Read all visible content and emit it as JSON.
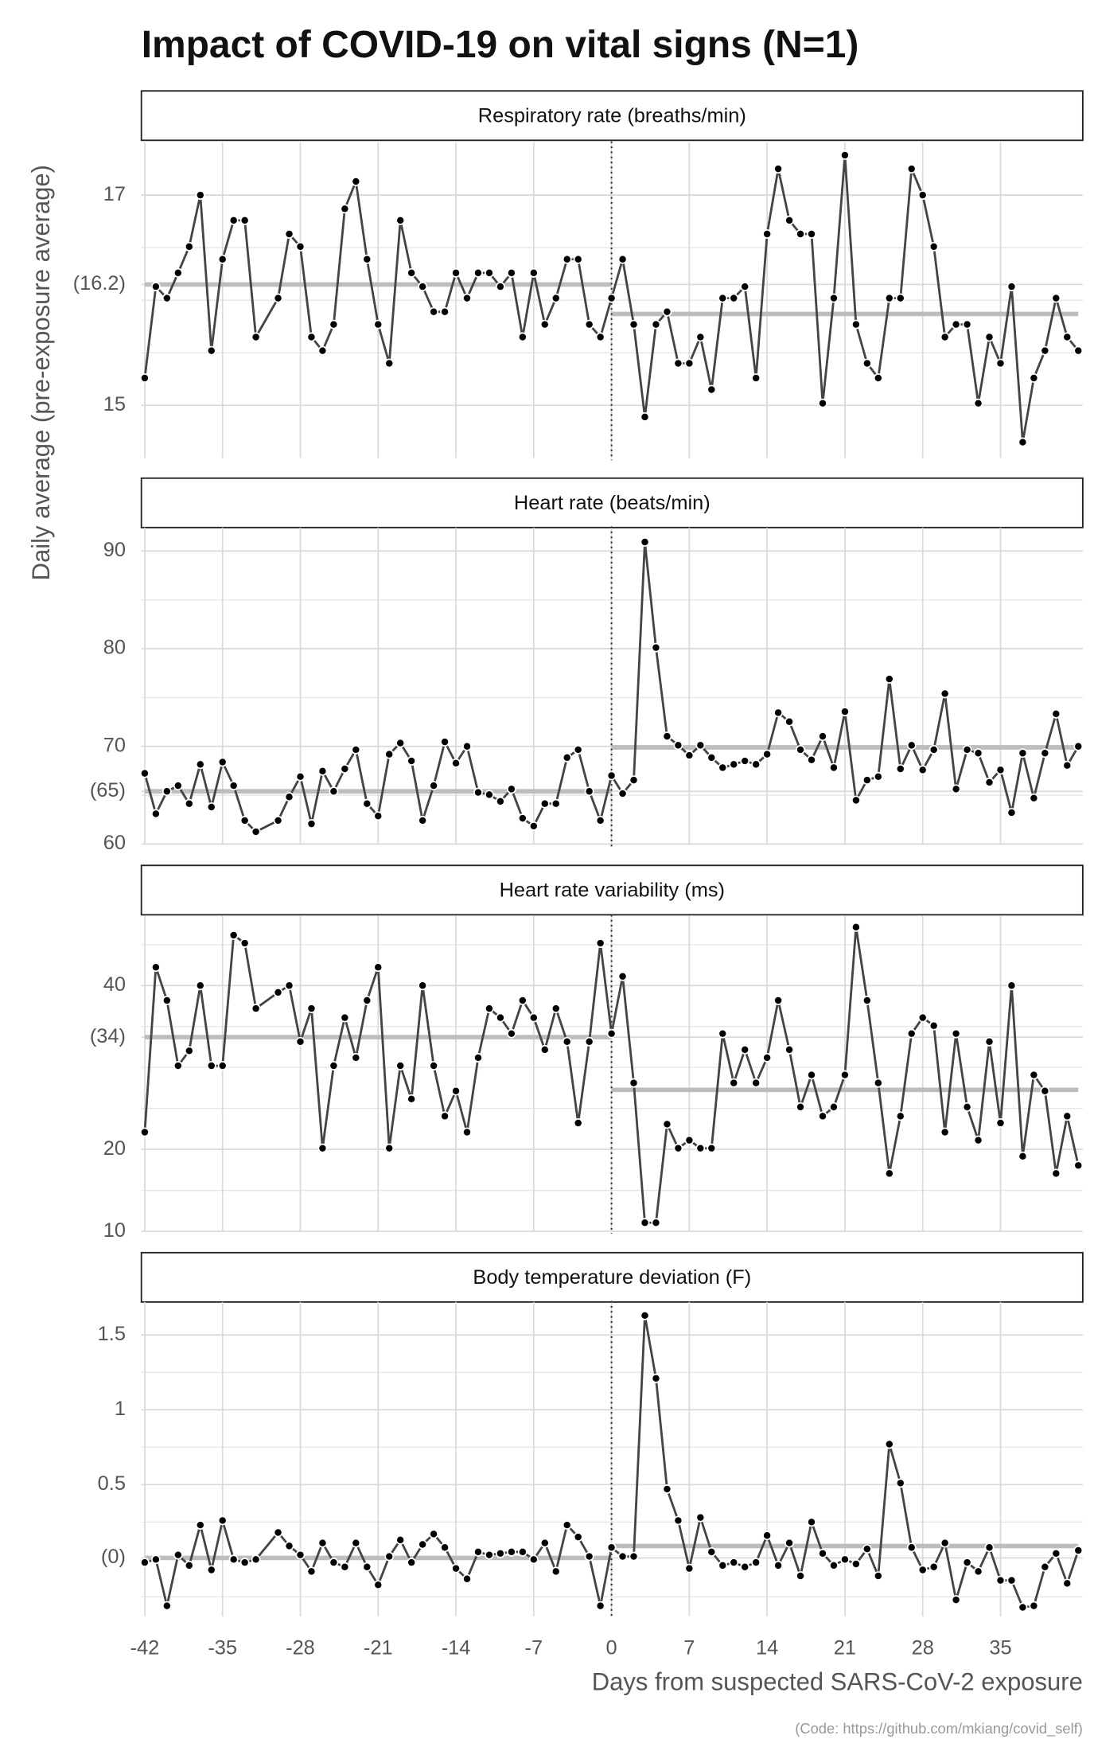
{
  "title": "Impact of COVID-19 on vital signs (N=1)",
  "y_label": "Daily average (pre-exposure average)",
  "x_label": "Days from suspected SARS-CoV-2 exposure",
  "caption": "(Code: https://github.com/mkiang/covid_self)",
  "chart_data": [
    {
      "type": "line",
      "title": "Respiratory rate (breaths/min)",
      "color": "#444444",
      "x": [
        -42,
        -41,
        -40,
        -39,
        -38,
        -37,
        -36,
        -35,
        -34,
        -33,
        -32,
        -30,
        -29,
        -28,
        -27,
        -26,
        -25,
        -24,
        -23,
        -22,
        -21,
        -20,
        -19,
        -18,
        -17,
        -16,
        -15,
        -14,
        -13,
        -12,
        -11,
        -10,
        -9,
        -8,
        -7,
        -6,
        -5,
        -4,
        -3,
        -2,
        -1,
        0,
        1,
        2,
        3,
        4,
        5,
        6,
        7,
        8,
        9,
        10,
        11,
        12,
        13,
        14,
        15,
        16,
        17,
        18,
        19,
        20,
        21,
        22,
        23,
        24,
        25,
        26,
        27,
        28,
        29,
        30,
        31,
        32,
        33,
        34,
        35,
        36,
        37,
        38,
        39,
        40,
        41,
        42
      ],
      "values": [
        15.26,
        16.13,
        16.02,
        16.26,
        16.51,
        17.0,
        15.52,
        16.39,
        16.76,
        16.76,
        15.65,
        16.02,
        16.63,
        16.51,
        15.65,
        15.52,
        15.77,
        16.87,
        17.13,
        16.39,
        15.77,
        15.4,
        16.76,
        16.26,
        16.13,
        15.89,
        15.89,
        16.26,
        16.02,
        16.26,
        16.26,
        16.13,
        16.26,
        15.65,
        16.26,
        15.77,
        16.02,
        16.39,
        16.39,
        15.77,
        15.65,
        16.02,
        16.39,
        15.77,
        14.89,
        15.77,
        15.89,
        15.4,
        15.4,
        15.65,
        15.15,
        16.02,
        16.02,
        16.13,
        15.26,
        16.63,
        17.25,
        16.76,
        16.63,
        16.63,
        15.02,
        16.02,
        17.38,
        15.77,
        15.4,
        15.26,
        16.02,
        16.02,
        17.25,
        17.0,
        16.51,
        15.65,
        15.77,
        15.77,
        15.02,
        15.65,
        15.4,
        16.13,
        14.65,
        15.26,
        15.52,
        16.02,
        15.65,
        15.52
      ],
      "pre_mean": 16.15,
      "post_mean": 15.87,
      "event_x": 0,
      "xlim": [
        -42,
        42
      ],
      "xticks": [
        -42,
        -35,
        -28,
        -21,
        -14,
        -7,
        0,
        7,
        14,
        21,
        28,
        35
      ],
      "ylim": [
        14.5,
        17.5
      ],
      "yticks": [
        15,
        {
          "value": 16.15,
          "label": "(16.2)"
        },
        17
      ],
      "minor_yticks": [
        15.5,
        16,
        16.5
      ]
    },
    {
      "type": "line",
      "title": "Heart rate (beats/min)",
      "color": "#444444",
      "x": [
        -42,
        -41,
        -40,
        -39,
        -38,
        -37,
        -36,
        -35,
        -34,
        -33,
        -32,
        -30,
        -29,
        -28,
        -27,
        -26,
        -25,
        -24,
        -23,
        -22,
        -21,
        -20,
        -19,
        -18,
        -17,
        -16,
        -15,
        -14,
        -13,
        -12,
        -11,
        -10,
        -9,
        -8,
        -7,
        -6,
        -5,
        -4,
        -3,
        -2,
        -1,
        0,
        1,
        2,
        3,
        4,
        5,
        6,
        7,
        8,
        9,
        10,
        11,
        12,
        13,
        14,
        15,
        16,
        17,
        18,
        19,
        20,
        21,
        22,
        23,
        24,
        25,
        26,
        27,
        28,
        29,
        30,
        31,
        32,
        33,
        34,
        35,
        36,
        37,
        38,
        39,
        40,
        41,
        42
      ],
      "values": [
        67.24,
        63.1,
        65.4,
        65.98,
        64.14,
        68.16,
        63.79,
        68.39,
        65.98,
        62.41,
        61.26,
        62.41,
        64.83,
        66.9,
        62.07,
        67.47,
        65.4,
        67.7,
        69.66,
        64.14,
        62.87,
        69.2,
        70.34,
        68.51,
        62.41,
        65.98,
        70.46,
        68.28,
        70.0,
        65.29,
        65.06,
        64.37,
        65.63,
        62.64,
        61.84,
        64.14,
        64.14,
        68.85,
        69.66,
        65.4,
        62.41,
        67.01,
        65.17,
        66.55,
        90.92,
        80.11,
        71.03,
        70.11,
        69.08,
        70.11,
        68.85,
        67.82,
        68.16,
        68.51,
        68.16,
        69.2,
        73.45,
        72.53,
        69.66,
        68.62,
        71.03,
        67.82,
        73.56,
        64.48,
        66.55,
        66.9,
        76.9,
        67.7,
        70.11,
        67.59,
        69.66,
        75.4,
        65.63,
        69.66,
        69.31,
        66.32,
        67.59,
        63.22,
        69.31,
        64.71,
        69.31,
        73.33,
        68.05,
        70.0
      ],
      "pre_mean": 65.4,
      "post_mean": 69.9,
      "event_x": 0,
      "xlim": [
        -42,
        42
      ],
      "xticks": [
        -42,
        -35,
        -28,
        -21,
        -14,
        -7,
        0,
        7,
        14,
        21,
        28,
        35
      ],
      "ylim": [
        60,
        92.4
      ],
      "yticks": [
        60,
        {
          "value": 65.4,
          "label": "(65)"
        },
        70,
        80,
        90
      ],
      "minor_yticks": [
        65,
        75,
        85
      ]
    },
    {
      "type": "line",
      "title": "Heart rate variability (ms)",
      "color": "#444444",
      "x": [
        -42,
        -41,
        -40,
        -39,
        -38,
        -37,
        -36,
        -35,
        -34,
        -33,
        -32,
        -30,
        -29,
        -28,
        -27,
        -26,
        -25,
        -24,
        -23,
        -22,
        -21,
        -20,
        -19,
        -18,
        -17,
        -16,
        -15,
        -14,
        -13,
        -12,
        -11,
        -10,
        -9,
        -8,
        -7,
        -6,
        -5,
        -4,
        -3,
        -2,
        -1,
        0,
        1,
        2,
        3,
        4,
        5,
        6,
        7,
        8,
        9,
        10,
        11,
        12,
        13,
        14,
        15,
        16,
        17,
        18,
        19,
        20,
        21,
        22,
        23,
        24,
        25,
        26,
        27,
        28,
        29,
        30,
        31,
        32,
        33,
        34,
        35,
        36,
        37,
        38,
        39,
        40,
        41,
        42
      ],
      "values": [
        22.1,
        42.24,
        38.18,
        30.21,
        32.03,
        40,
        30.21,
        30.21,
        46.15,
        45.17,
        37.2,
        39.16,
        40,
        33.15,
        37.2,
        20.14,
        30.21,
        36.08,
        31.19,
        38.18,
        42.24,
        20.14,
        30.21,
        26.15,
        40,
        30.21,
        24.06,
        27.13,
        22.1,
        31.19,
        37.2,
        36.08,
        34.13,
        38.18,
        36.08,
        32.17,
        37.2,
        33.15,
        23.22,
        33.15,
        45.17,
        34.13,
        41.12,
        28.11,
        11.05,
        11.05,
        23.08,
        20.14,
        21.12,
        20.14,
        20.14,
        34.13,
        28.11,
        32.17,
        28.11,
        31.19,
        38.18,
        32.17,
        25.17,
        29.09,
        24.06,
        25.17,
        29.09,
        47.13,
        38.18,
        28.11,
        17.06,
        24.06,
        34.13,
        36.08,
        35.1,
        22.1,
        34.13,
        25.17,
        21.12,
        33.15,
        23.22,
        40,
        19.16,
        29.09,
        27.13,
        17.06,
        24.06,
        18.04
      ],
      "pre_mean": 33.7,
      "post_mean": 27.27,
      "event_x": 0,
      "xlim": [
        -42,
        42
      ],
      "xticks": [
        -42,
        -35,
        -28,
        -21,
        -14,
        -7,
        0,
        7,
        14,
        21,
        28,
        35
      ],
      "ylim": [
        10,
        48.5
      ],
      "yticks": [
        10,
        20,
        {
          "value": 33.7,
          "label": "(34)"
        },
        40
      ],
      "minor_yticks": [
        15,
        25,
        30,
        35,
        45
      ]
    },
    {
      "type": "line",
      "title": "Body temperature deviation (F)",
      "color": "#444444",
      "x": [
        -42,
        -41,
        -40,
        -39,
        -38,
        -37,
        -36,
        -35,
        -34,
        -33,
        -32,
        -30,
        -29,
        -28,
        -27,
        -26,
        -25,
        -24,
        -23,
        -22,
        -21,
        -20,
        -19,
        -18,
        -17,
        -16,
        -15,
        -14,
        -13,
        -12,
        -11,
        -10,
        -9,
        -8,
        -7,
        -6,
        -5,
        -4,
        -3,
        -2,
        -1,
        0,
        1,
        2,
        3,
        4,
        5,
        6,
        7,
        8,
        9,
        10,
        11,
        12,
        13,
        14,
        15,
        16,
        17,
        18,
        19,
        20,
        21,
        22,
        23,
        24,
        25,
        26,
        27,
        28,
        29,
        30,
        31,
        32,
        33,
        34,
        35,
        36,
        37,
        38,
        39,
        40,
        41,
        42
      ],
      "values": [
        -0.02,
        0,
        -0.31,
        0.03,
        -0.04,
        0.23,
        -0.07,
        0.26,
        0,
        -0.02,
        0,
        0.18,
        0.09,
        0.03,
        -0.08,
        0.11,
        -0.02,
        -0.05,
        0.11,
        -0.05,
        -0.17,
        0.02,
        0.13,
        -0.02,
        0.1,
        0.17,
        0.08,
        -0.06,
        -0.13,
        0.05,
        0.03,
        0.04,
        0.05,
        0.05,
        0,
        0.11,
        -0.08,
        0.23,
        0.15,
        0.02,
        -0.31,
        0.08,
        0.02,
        0.02,
        1.63,
        1.21,
        0.47,
        0.26,
        -0.06,
        0.28,
        0.05,
        -0.04,
        -0.02,
        -0.05,
        -0.02,
        0.16,
        -0.04,
        0.11,
        -0.11,
        0.25,
        0.04,
        -0.04,
        0,
        -0.03,
        0.07,
        -0.11,
        0.77,
        0.51,
        0.08,
        -0.07,
        -0.05,
        0.11,
        -0.27,
        -0.02,
        -0.08,
        0.08,
        -0.14,
        -0.14,
        -0.32,
        -0.31,
        -0.05,
        0.04,
        -0.16,
        0.06
      ],
      "pre_mean": 0.01,
      "post_mean": 0.09,
      "event_x": 0,
      "xlim": [
        -42,
        42
      ],
      "xticks": [
        -42,
        -35,
        -28,
        -21,
        -14,
        -7,
        0,
        7,
        14,
        21,
        28,
        35
      ],
      "ylim": [
        -0.38,
        1.72
      ],
      "yticks": [
        {
          "value": 0.01,
          "label": "(0)"
        },
        0.5,
        1,
        1.5
      ],
      "minor_yticks": [
        -0.25,
        0.25,
        0.75,
        1.25
      ]
    }
  ]
}
